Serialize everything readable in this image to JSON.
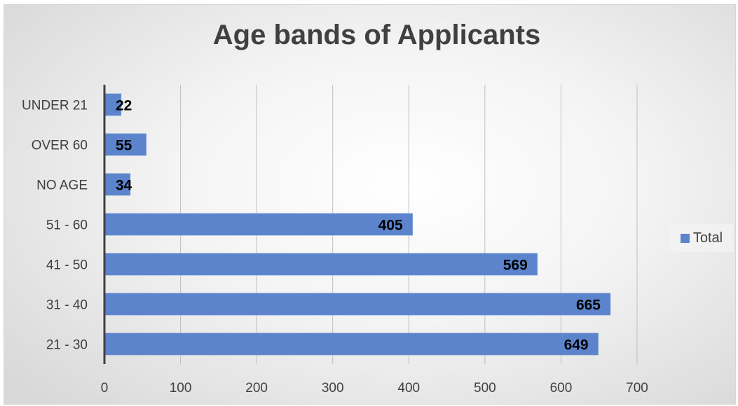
{
  "chart_data": {
    "type": "bar",
    "orientation": "horizontal",
    "title": "Age bands of Applicants",
    "categories": [
      "UNDER 21",
      "OVER 60",
      "NO AGE",
      "51 - 60",
      "41 - 50",
      "31 - 40",
      "21 - 30"
    ],
    "series": [
      {
        "name": "Total",
        "values": [
          22,
          55,
          34,
          405,
          569,
          665,
          649
        ]
      }
    ],
    "xlim": [
      0,
      700
    ],
    "xticks": [
      "0",
      "100",
      "200",
      "300",
      "400",
      "500",
      "600",
      "700"
    ],
    "grid": true,
    "legend_position": "right",
    "bar_color": "#5b84cc"
  }
}
